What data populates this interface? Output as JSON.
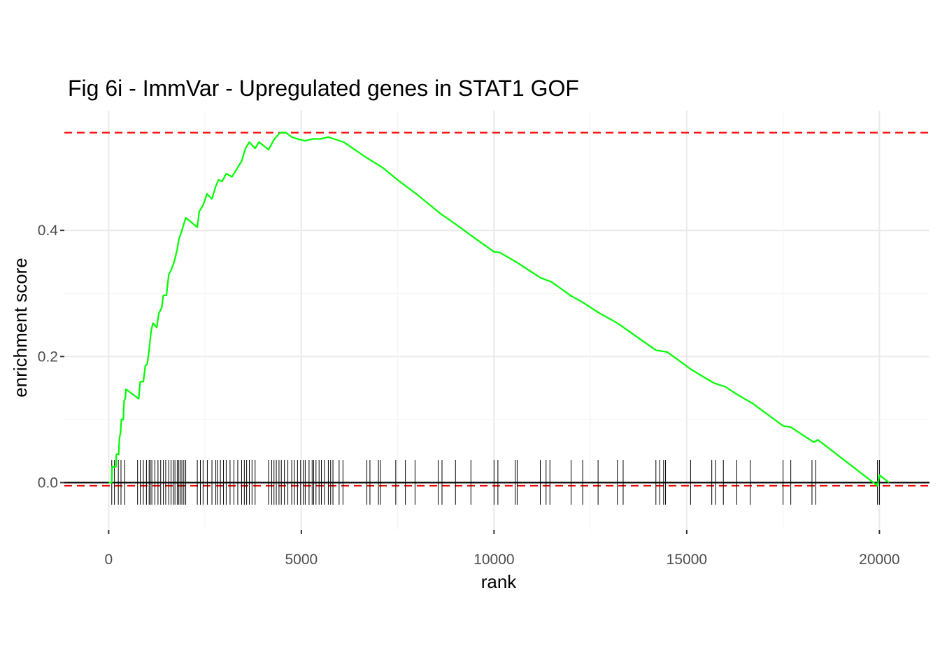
{
  "chart_data": {
    "type": "line",
    "title": "Fig 6i - ImmVar - Upregulated genes in STAT1 GOF",
    "xlabel": "rank",
    "ylabel": "enrichment score",
    "xlim": [
      -1150,
      21300
    ],
    "ylim": [
      -0.075,
      0.59
    ],
    "x_ticks": [
      0,
      5000,
      10000,
      15000,
      20000
    ],
    "x_tick_labels": [
      "0",
      "5000",
      "10000",
      "15000",
      "20000"
    ],
    "y_ticks": [
      0.0,
      0.2,
      0.4
    ],
    "y_tick_labels": [
      "0.0",
      "0.2",
      "0.4"
    ],
    "grid": true,
    "colors": {
      "es_line": "#00ff00",
      "threshold": "#ff0000",
      "gene_marks": "#000000",
      "zero_line": "#000000",
      "grid": "#ebebeb"
    },
    "threshold_lines": [
      0.555,
      -0.005
    ],
    "zero_line": 0.0,
    "series": [
      {
        "values": [
          [
            0,
            0.0
          ],
          [
            80,
            0.0
          ],
          [
            90,
            0.025
          ],
          [
            190,
            0.025
          ],
          [
            200,
            0.045
          ],
          [
            260,
            0.045
          ],
          [
            280,
            0.07
          ],
          [
            310,
            0.08
          ],
          [
            330,
            0.1
          ],
          [
            380,
            0.1
          ],
          [
            400,
            0.13
          ],
          [
            430,
            0.133
          ],
          [
            450,
            0.148
          ],
          [
            780,
            0.133
          ],
          [
            820,
            0.16
          ],
          [
            900,
            0.16
          ],
          [
            950,
            0.185
          ],
          [
            1000,
            0.188
          ],
          [
            1050,
            0.21
          ],
          [
            1100,
            0.24
          ],
          [
            1150,
            0.253
          ],
          [
            1250,
            0.246
          ],
          [
            1300,
            0.268
          ],
          [
            1380,
            0.278
          ],
          [
            1420,
            0.297
          ],
          [
            1500,
            0.297
          ],
          [
            1560,
            0.33
          ],
          [
            1620,
            0.337
          ],
          [
            1700,
            0.35
          ],
          [
            1780,
            0.37
          ],
          [
            1820,
            0.385
          ],
          [
            1900,
            0.4
          ],
          [
            2000,
            0.42
          ],
          [
            2300,
            0.405
          ],
          [
            2350,
            0.43
          ],
          [
            2450,
            0.44
          ],
          [
            2550,
            0.458
          ],
          [
            2680,
            0.45
          ],
          [
            2780,
            0.47
          ],
          [
            2850,
            0.48
          ],
          [
            2950,
            0.478
          ],
          [
            3050,
            0.49
          ],
          [
            3200,
            0.485
          ],
          [
            3350,
            0.5
          ],
          [
            3450,
            0.51
          ],
          [
            3550,
            0.53
          ],
          [
            3650,
            0.54
          ],
          [
            3800,
            0.53
          ],
          [
            3900,
            0.54
          ],
          [
            4150,
            0.528
          ],
          [
            4300,
            0.545
          ],
          [
            4450,
            0.555
          ],
          [
            4600,
            0.555
          ],
          [
            4750,
            0.548
          ],
          [
            4900,
            0.545
          ],
          [
            5100,
            0.542
          ],
          [
            5300,
            0.545
          ],
          [
            5500,
            0.545
          ],
          [
            5700,
            0.548
          ],
          [
            5850,
            0.545
          ],
          [
            6100,
            0.54
          ],
          [
            6700,
            0.515
          ],
          [
            7100,
            0.5
          ],
          [
            7500,
            0.48
          ],
          [
            8000,
            0.457
          ],
          [
            8600,
            0.427
          ],
          [
            9000,
            0.41
          ],
          [
            9400,
            0.392
          ],
          [
            10000,
            0.366
          ],
          [
            10150,
            0.365
          ],
          [
            10600,
            0.349
          ],
          [
            11200,
            0.325
          ],
          [
            11500,
            0.318
          ],
          [
            12000,
            0.296
          ],
          [
            12300,
            0.286
          ],
          [
            12700,
            0.27
          ],
          [
            13200,
            0.253
          ],
          [
            14200,
            0.21
          ],
          [
            14500,
            0.207
          ],
          [
            15100,
            0.18
          ],
          [
            15700,
            0.158
          ],
          [
            16000,
            0.152
          ],
          [
            16300,
            0.14
          ],
          [
            16700,
            0.126
          ],
          [
            17500,
            0.09
          ],
          [
            17700,
            0.088
          ],
          [
            18300,
            0.064
          ],
          [
            18400,
            0.068
          ],
          [
            19950,
            -0.005
          ],
          [
            20000,
            0.012
          ],
          [
            20250,
            0.0
          ]
        ]
      }
    ],
    "gene_ranks": [
      80,
      150,
      250,
      320,
      420,
      750,
      820,
      900,
      980,
      1050,
      1080,
      1120,
      1200,
      1280,
      1350,
      1420,
      1480,
      1560,
      1620,
      1680,
      1720,
      1780,
      1820,
      1860,
      1900,
      1950,
      2000,
      2300,
      2380,
      2450,
      2560,
      2680,
      2780,
      2820,
      2900,
      2980,
      3050,
      3150,
      3250,
      3350,
      3450,
      3520,
      3580,
      3650,
      3720,
      3800,
      4150,
      4230,
      4290,
      4350,
      4420,
      4480,
      4560,
      4650,
      4750,
      4820,
      4900,
      4980,
      5050,
      5100,
      5200,
      5280,
      5320,
      5380,
      5460,
      5520,
      5600,
      5700,
      5760,
      5820,
      5980,
      6080,
      6700,
      6780,
      7000,
      7050,
      7450,
      7700,
      7950,
      8550,
      8650,
      9000,
      9400,
      10000,
      10100,
      10550,
      10600,
      11200,
      11350,
      11450,
      12000,
      12300,
      12700,
      13200,
      13350,
      14200,
      14300,
      14400,
      14450,
      15100,
      15650,
      15750,
      15950,
      16300,
      16650,
      17500,
      17700,
      18250,
      18350,
      19950,
      20000
    ]
  }
}
